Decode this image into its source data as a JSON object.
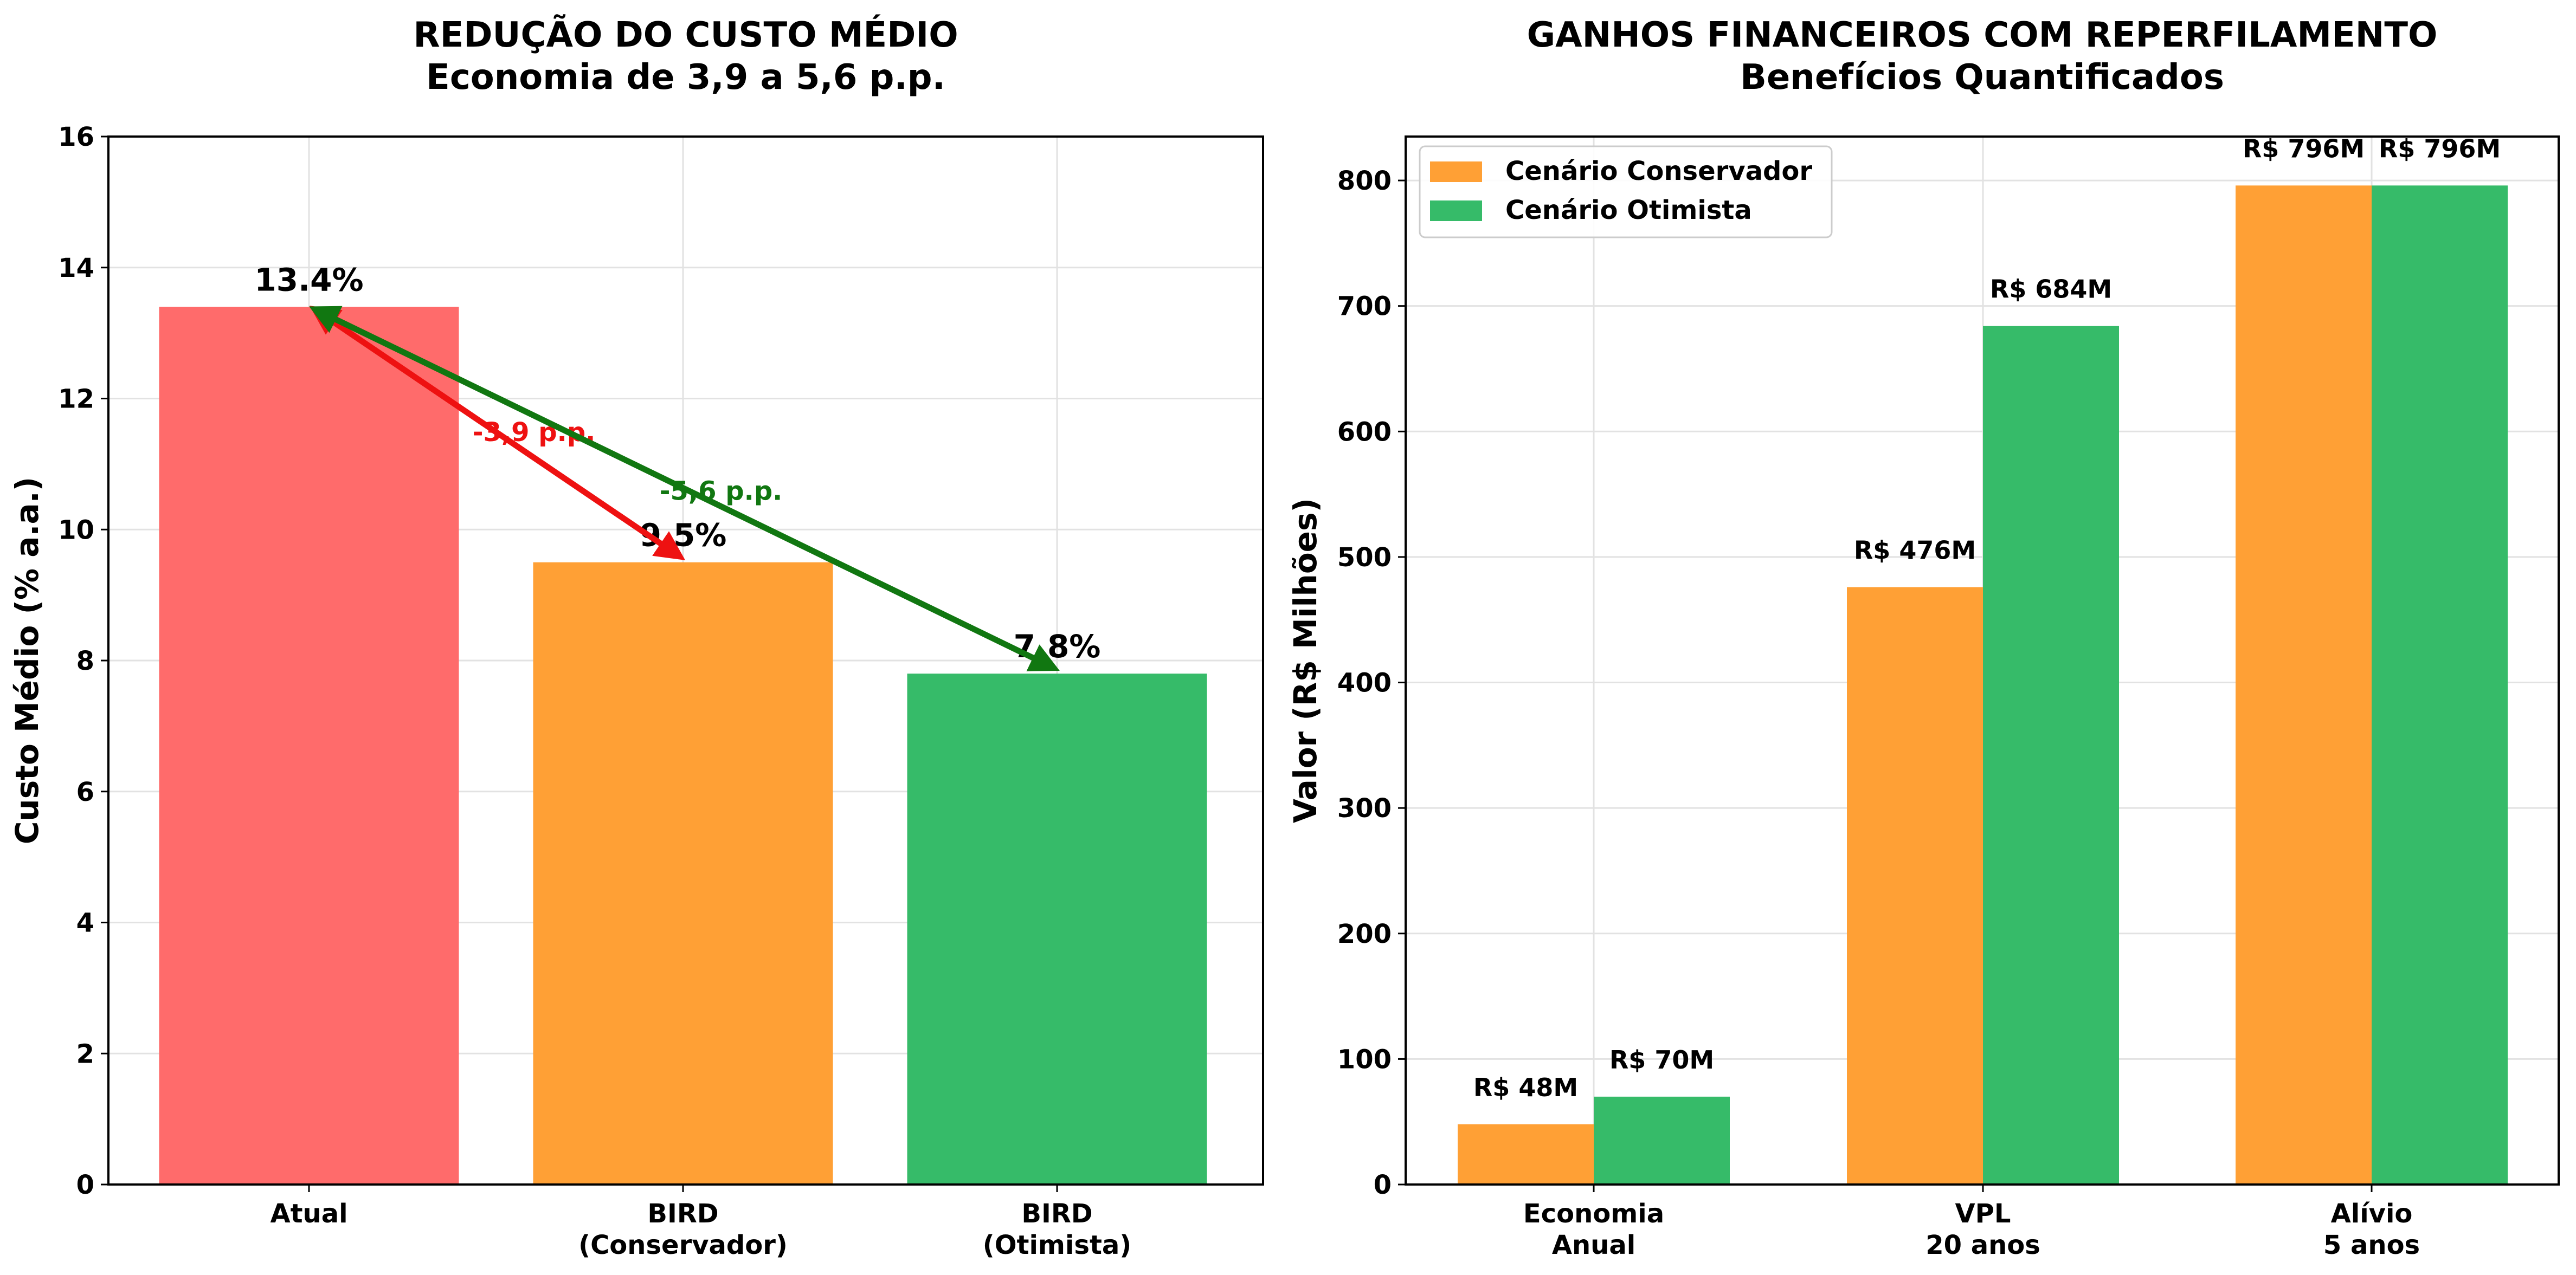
{
  "chart_data": [
    {
      "type": "bar",
      "title": [
        "REDUÇÃO DO CUSTO MÉDIO",
        "Economia de 3,9 a 5,6 p.p."
      ],
      "xlabel": "",
      "ylabel": "Custo Médio (% a.a.)",
      "ylim": [
        0,
        16
      ],
      "yticks": [
        "0",
        "2",
        "4",
        "6",
        "8",
        "10",
        "12",
        "14",
        "16"
      ],
      "grid": true,
      "categories": [
        [
          "Atual"
        ],
        [
          "BIRD",
          "(Conservador)"
        ],
        [
          "BIRD",
          "(Otimista)"
        ]
      ],
      "values": [
        13.4,
        9.5,
        7.8
      ],
      "colors": [
        "#ff6b6b",
        "#ffa035",
        "#36bb69"
      ],
      "value_labels": [
        "13.4%",
        "9.5%",
        "7.8%"
      ],
      "annotations": [
        {
          "text": "-3,9 p.p.",
          "color": "#ee1111",
          "from_bar": 0,
          "to_bar": 1,
          "label_at": [
            0.5,
            11.5
          ]
        },
        {
          "text": "-5,6 p.p.",
          "color": "#117711",
          "from_bar": 0,
          "to_bar": 2,
          "label_at": [
            1.0,
            10.6
          ]
        }
      ]
    },
    {
      "type": "bar",
      "title": [
        "GANHOS FINANCEIROS COM REPERFILAMENTO",
        "Benefícios Quantificados"
      ],
      "xlabel": "",
      "ylabel": "Valor (R$ Milhões)",
      "ylim": [
        0,
        835
      ],
      "yticks": [
        "0",
        "100",
        "200",
        "300",
        "400",
        "500",
        "600",
        "700",
        "800"
      ],
      "grid": true,
      "legend": "top-left",
      "categories": [
        [
          "Economia",
          "Anual"
        ],
        [
          "VPL",
          "20 anos"
        ],
        [
          "Alívio",
          "5 anos"
        ]
      ],
      "series": [
        {
          "name": "Cenário Conservador",
          "color": "#ffa035",
          "values": [
            48,
            476,
            796
          ],
          "labels": [
            "R$ 48M",
            "R$ 476M",
            "R$ 796M"
          ]
        },
        {
          "name": "Cenário Otimista",
          "color": "#36bb69",
          "values": [
            70,
            684,
            796
          ],
          "labels": [
            "R$ 70M",
            "R$ 684M",
            "R$ 796M"
          ]
        }
      ]
    }
  ]
}
